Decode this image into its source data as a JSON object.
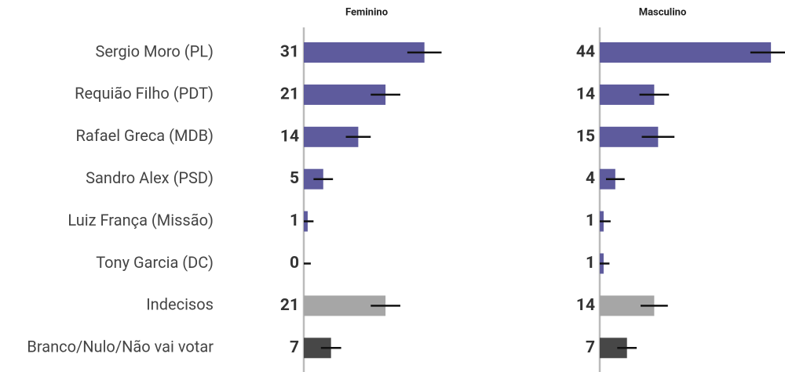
{
  "chart_data": {
    "type": "bar",
    "categories": [
      "Sergio Moro (PL)",
      "Requião Filho (PDT)",
      "Rafael Greca (MDB)",
      "Sandro Alex (PSD)",
      "Luiz França (Missão)",
      "Tony Garcia (DC)",
      "Indecisos",
      "Branco/Nulo/Não vai votar"
    ],
    "colors": [
      "#5e5b9d",
      "#5e5b9d",
      "#5e5b9d",
      "#5e5b9d",
      "#5e5b9d",
      "#5e5b9d",
      "#a6a6a6",
      "#474747"
    ],
    "series": [
      {
        "name": "Feminino",
        "values": [
          31,
          21,
          14,
          5,
          1,
          0,
          21,
          7
        ],
        "errors": [
          4.4,
          3.8,
          3.2,
          2.5,
          1.5,
          1.8,
          3.8,
          2.6
        ]
      },
      {
        "name": "Masculino",
        "values": [
          44,
          14,
          15,
          4,
          1,
          1,
          14,
          7
        ],
        "errors": [
          5.3,
          3.8,
          4.2,
          2.4,
          1.8,
          1.5,
          3.5,
          2.5
        ]
      }
    ],
    "xlim": [
      0,
      47
    ]
  }
}
